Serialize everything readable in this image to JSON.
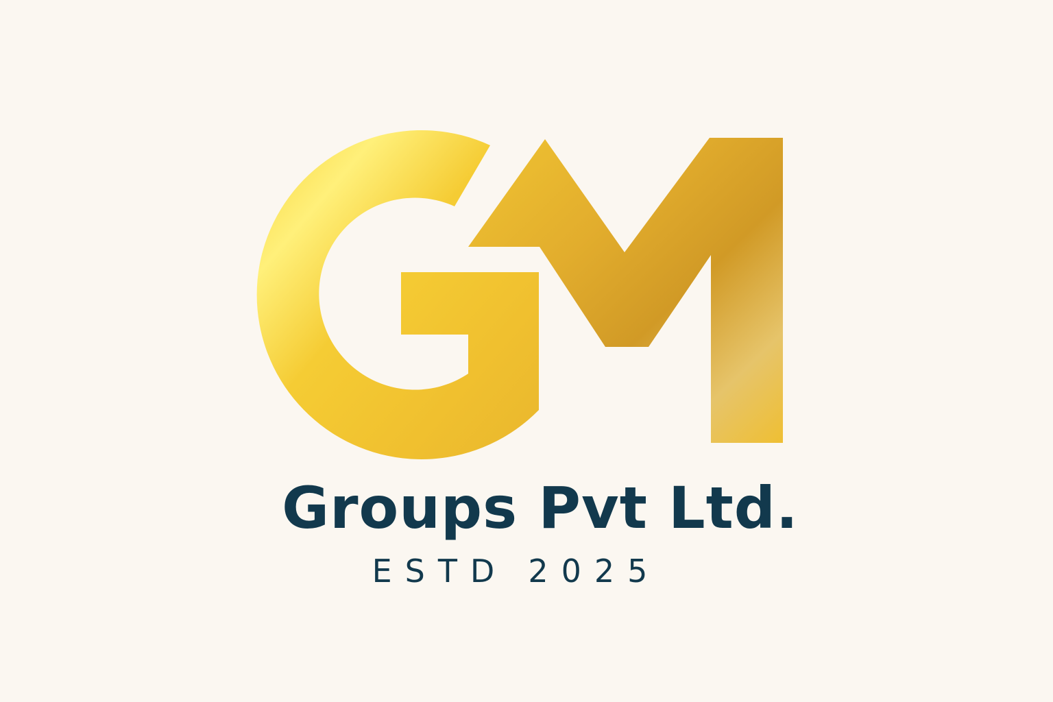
{
  "logo": {
    "letters": "GM",
    "icon": "gm-monogram-logo",
    "colors": {
      "gold_light": "#fff07a",
      "gold_mid": "#f2c52d",
      "gold_dark": "#d19a26",
      "text": "#12394d",
      "background": "#fbf7f1"
    }
  },
  "company": {
    "name": "Groups Pvt Ltd."
  },
  "established": {
    "label": "ESTD",
    "year": "2025"
  }
}
